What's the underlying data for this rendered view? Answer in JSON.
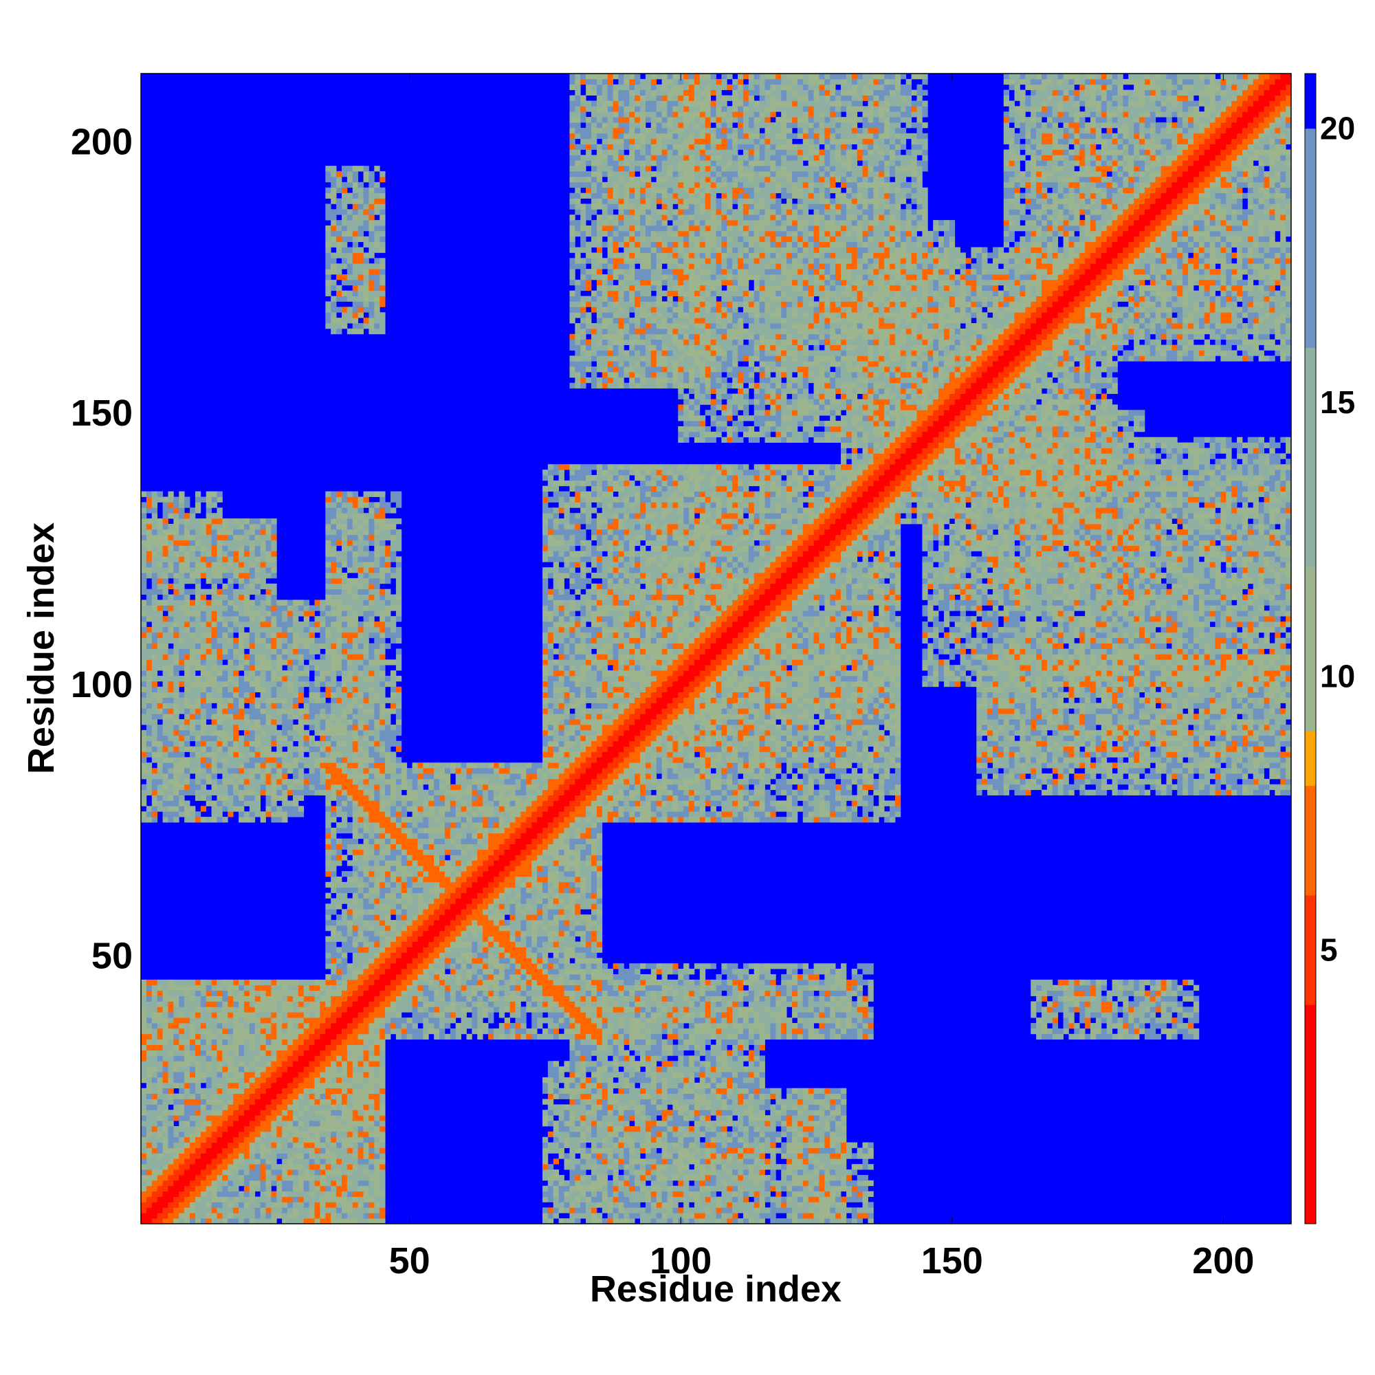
{
  "chart_data": {
    "type": "heatmap",
    "title": "",
    "xlabel": "Residue index",
    "ylabel": "Residue index",
    "xlim": [
      1,
      212
    ],
    "ylim": [
      1,
      212
    ],
    "x_ticks": [
      "50",
      "100",
      "150",
      "200"
    ],
    "y_ticks": [
      "50",
      "100",
      "150",
      "200"
    ],
    "colorbar": {
      "range": [
        0,
        21
      ],
      "ticks": [
        "5",
        "10",
        "15",
        "20"
      ],
      "scale": [
        {
          "value": 0,
          "color": "#ff0000"
        },
        {
          "value": 4,
          "color": "#ff3300"
        },
        {
          "value": 6,
          "color": "#ff6600"
        },
        {
          "value": 8,
          "color": "#ffa500"
        },
        {
          "value": 9,
          "color": "#9db58f"
        },
        {
          "value": 12,
          "color": "#8fb0a0"
        },
        {
          "value": 16,
          "color": "#6f93c0"
        },
        {
          "value": 19.9,
          "color": "#5f88c8"
        },
        {
          "value": 20,
          "color": "#0000ff"
        }
      ]
    },
    "values_description_note": "",
    "diagonal": {
      "from": 1,
      "to": 212
    },
    "contact_regions": [
      {
        "x": [
          1,
          45
        ],
        "y": [
          1,
          45
        ]
      },
      {
        "x": [
          15,
          45
        ],
        "y": [
          25,
          45
        ]
      },
      {
        "x": [
          30,
          45
        ],
        "y": [
          1,
          45
        ]
      },
      {
        "x": [
          40,
          85
        ],
        "y": [
          35,
          85
        ]
      },
      {
        "x": [
          80,
          115
        ],
        "y": [
          1,
          40
        ]
      },
      {
        "x": [
          115,
          130
        ],
        "y": [
          1,
          25
        ]
      },
      {
        "x": [
          85,
          135
        ],
        "y": [
          35,
          48
        ]
      },
      {
        "x": [
          1,
          30
        ],
        "y": [
          75,
          115
        ]
      },
      {
        "x": [
          1,
          25
        ],
        "y": [
          120,
          130
        ]
      },
      {
        "x": [
          35,
          45
        ],
        "y": [
          80,
          135
        ]
      },
      {
        "x": [
          75,
          95
        ],
        "y": [
          80,
          115
        ]
      },
      {
        "x": [
          85,
          140
        ],
        "y": [
          75,
          140
        ]
      },
      {
        "x": [
          95,
          140
        ],
        "y": [
          95,
          110
        ]
      },
      {
        "x": [
          80,
          105
        ],
        "y": [
          155,
          215
        ]
      },
      {
        "x": [
          100,
          145
        ],
        "y": [
          160,
          215
        ]
      },
      {
        "x": [
          115,
          150
        ],
        "y": [
          150,
          185
        ]
      },
      {
        "x": [
          130,
          180
        ],
        "y": [
          135,
          175
        ]
      },
      {
        "x": [
          145,
          212
        ],
        "y": [
          100,
          140
        ]
      },
      {
        "x": [
          155,
          212
        ],
        "y": [
          85,
          105
        ]
      },
      {
        "x": [
          165,
          212
        ],
        "y": [
          160,
          215
        ]
      },
      {
        "x": [
          35,
          45
        ],
        "y": [
          165,
          195
        ]
      },
      {
        "x": [
          165,
          190
        ],
        "y": [
          40,
          45
        ]
      },
      {
        "x": [
          120,
          135
        ],
        "y": [
          1,
          15
        ]
      }
    ]
  }
}
